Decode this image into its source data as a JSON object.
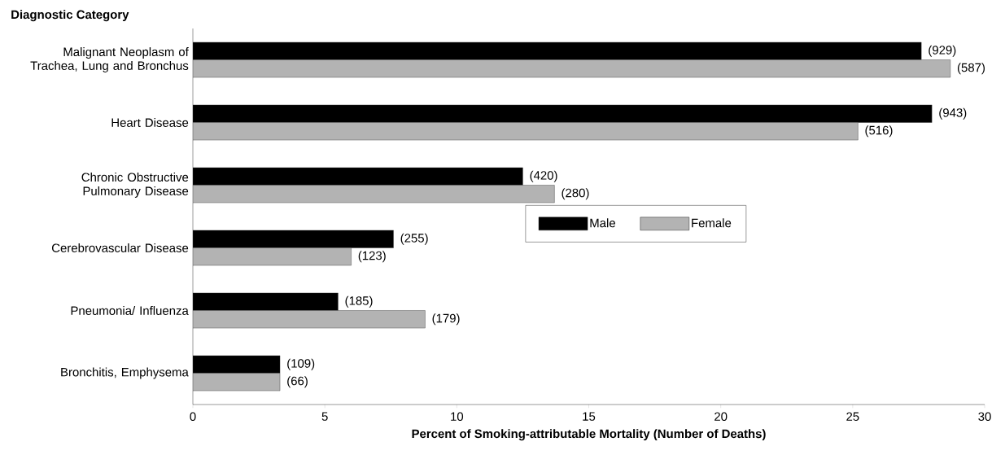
{
  "chart_data": {
    "type": "bar",
    "orientation": "horizontal",
    "ylabel": "Diagnostic Category",
    "xlabel": "Percent of Smoking-attributable Mortality (Number of Deaths)",
    "categories": [
      "Malignant Neoplasm of Trachea, Lung and Bronchus",
      "Heart Disease",
      "Chronic Obstructive Pulmonary Disease",
      "Cerebrovascular Disease",
      "Pneumonia/ Influenza",
      "Bronchitis, Emphysema"
    ],
    "series": [
      {
        "name": "Male",
        "color": "#000000",
        "values": [
          27.6,
          28.0,
          12.5,
          7.6,
          5.5,
          3.3
        ]
      },
      {
        "name": "Female",
        "color": "#b3b3b3",
        "values": [
          28.7,
          25.2,
          13.7,
          6.0,
          8.8,
          3.3
        ]
      }
    ],
    "annotations": [
      {
        "text": "(929)",
        "x": 27.6,
        "y": "Malignant Neoplasm of Trachea, Lung and Bronchus"
      },
      {
        "text": "(587)",
        "x": 28.7,
        "y": "Malignant Neoplasm of Trachea, Lung and Bronchus"
      },
      {
        "text": "(943)",
        "x": 28.0,
        "y": "Heart Disease"
      },
      {
        "text": "(516)",
        "x": 25.2,
        "y": "Heart Disease"
      },
      {
        "text": "(420)",
        "x": 12.5,
        "y": "Chronic Obstructive Pulmonary Disease"
      },
      {
        "text": "(280)",
        "x": 13.7,
        "y": "Chronic Obstructive Pulmonary Disease"
      },
      {
        "text": "(255)",
        "x": 7.6,
        "y": "Cerebrovascular Disease"
      },
      {
        "text": "(123)",
        "x": 6.0,
        "y": "Cerebrovascular Disease"
      },
      {
        "text": "(185)",
        "x": 5.5,
        "y": "Pneumonia/ Influenza"
      },
      {
        "text": "(179)",
        "x": 8.8,
        "y": "Pneumonia/ Influenza"
      },
      {
        "text": "(109)",
        "x": 3.3,
        "y": "Bronchitis, Emphysema"
      },
      {
        "text": "(66)",
        "x": 3.3,
        "y": "Bronchitis, Emphysema"
      }
    ],
    "xlim": [
      0,
      30
    ],
    "xticks": [
      0,
      5,
      10,
      15,
      20,
      25,
      30
    ],
    "legend": "right",
    "grid": false
  }
}
